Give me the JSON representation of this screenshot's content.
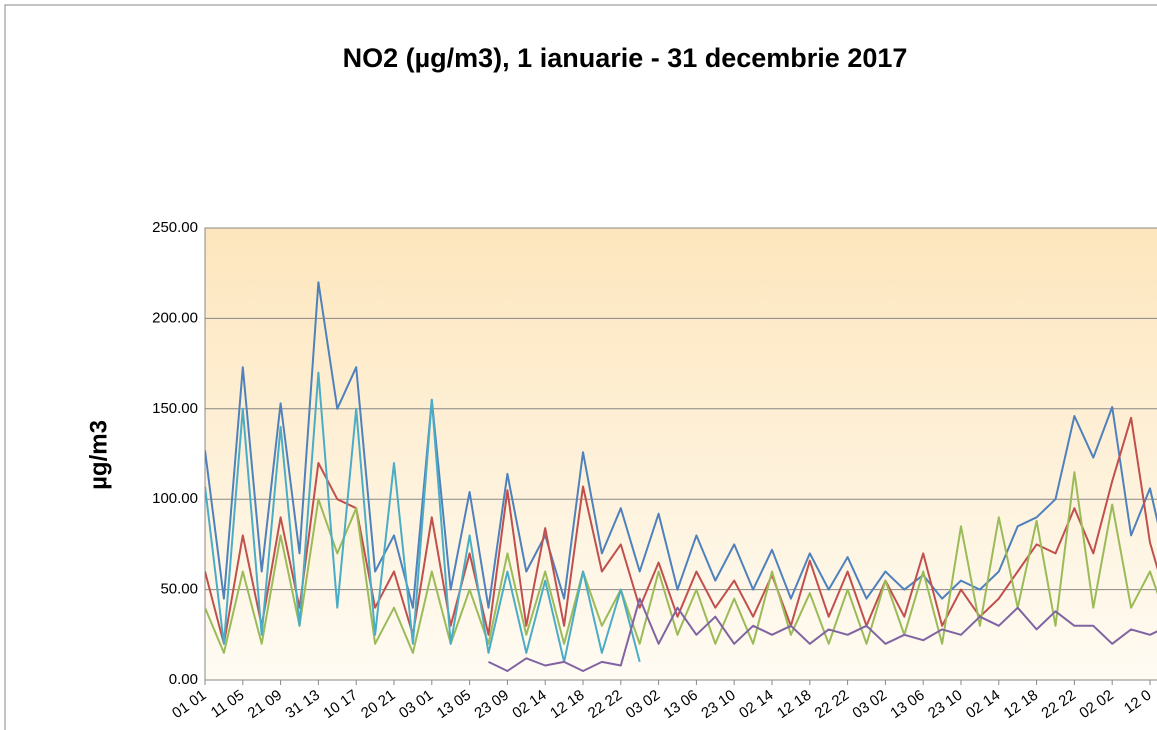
{
  "chart_data": {
    "type": "line",
    "title": "NO2 (µg/m3), 1 ianuarie - 31 decembrie 2017",
    "y_label": "µg/m3",
    "categories": [
      "01 01",
      null,
      "11 05",
      null,
      "21 09",
      null,
      "31 13",
      null,
      "10 17",
      null,
      "20 21",
      null,
      "03 01",
      null,
      "13 05",
      null,
      "23 09",
      null,
      "02 14",
      null,
      "12 18",
      null,
      "22 22",
      null,
      "03 02",
      null,
      "13 06",
      null,
      "23 10",
      null,
      "02 14",
      null,
      "12 18",
      null,
      "22 22",
      null,
      "03 02",
      null,
      "13 06",
      null,
      "23 10",
      null,
      "02 14",
      null,
      "12 18",
      null,
      "22 22",
      null,
      "02 02",
      null,
      "12 0",
      null
    ],
    "series": [
      {
        "color": "#4f81bd",
        "values": [
          127,
          45,
          173,
          60,
          153,
          70,
          220,
          150,
          173,
          60,
          80,
          40,
          155,
          50,
          104,
          40,
          114,
          60,
          80,
          45,
          126,
          70,
          95,
          60,
          92,
          50,
          80,
          55,
          75,
          50,
          72,
          45,
          70,
          50,
          68,
          45,
          60,
          50,
          58,
          45,
          55,
          50,
          60,
          85,
          90,
          100,
          146,
          123,
          151,
          80,
          106,
          60
        ]
      },
      {
        "color": "#c0504d",
        "values": [
          60,
          20,
          80,
          30,
          90,
          40,
          120,
          100,
          95,
          40,
          60,
          25,
          90,
          30,
          70,
          25,
          105,
          30,
          84,
          30,
          107,
          60,
          75,
          40,
          65,
          35,
          60,
          40,
          55,
          35,
          58,
          30,
          66,
          35,
          60,
          30,
          55,
          35,
          70,
          30,
          50,
          35,
          45,
          60,
          75,
          70,
          95,
          70,
          110,
          145,
          76,
          40
        ]
      },
      {
        "color": "#9bbb59",
        "values": [
          40,
          15,
          60,
          20,
          80,
          30,
          100,
          70,
          95,
          20,
          40,
          15,
          60,
          20,
          50,
          20,
          70,
          25,
          60,
          20,
          60,
          30,
          50,
          20,
          60,
          25,
          50,
          20,
          45,
          20,
          60,
          25,
          48,
          20,
          50,
          20,
          55,
          25,
          60,
          20,
          85,
          30,
          90,
          40,
          88,
          30,
          115,
          40,
          97,
          40,
          60,
          30
        ]
      },
      {
        "color": "#4bacc6",
        "values": [
          107,
          20,
          150,
          25,
          140,
          30,
          170,
          40,
          150,
          25,
          120,
          20,
          155,
          20,
          80,
          15,
          60,
          15,
          55,
          10,
          60,
          15,
          50,
          10,
          null,
          null,
          null,
          null,
          null,
          null,
          null,
          null,
          null,
          null,
          null,
          null,
          null,
          null,
          null,
          null,
          null,
          null,
          null,
          null,
          null,
          null,
          null,
          null,
          null,
          null,
          null,
          null
        ]
      },
      {
        "color": "#8064a2",
        "values": [
          null,
          null,
          null,
          null,
          null,
          null,
          null,
          null,
          null,
          null,
          null,
          null,
          null,
          null,
          null,
          10,
          5,
          12,
          8,
          10,
          5,
          10,
          8,
          45,
          20,
          40,
          25,
          35,
          20,
          30,
          25,
          30,
          20,
          28,
          25,
          30,
          20,
          25,
          22,
          28,
          25,
          35,
          30,
          40,
          28,
          38,
          30,
          30,
          20,
          28,
          25,
          30
        ]
      }
    ],
    "ylim": [
      0,
      250
    ],
    "yticks": [
      {
        "value": 0,
        "label": "0.00"
      },
      {
        "value": 50,
        "label": "50.00"
      },
      {
        "value": 100,
        "label": "100.00"
      },
      {
        "value": 150,
        "label": "150.00"
      },
      {
        "value": 200,
        "label": "200.00"
      },
      {
        "value": 250,
        "label": "250.00"
      }
    ],
    "grid": true
  }
}
